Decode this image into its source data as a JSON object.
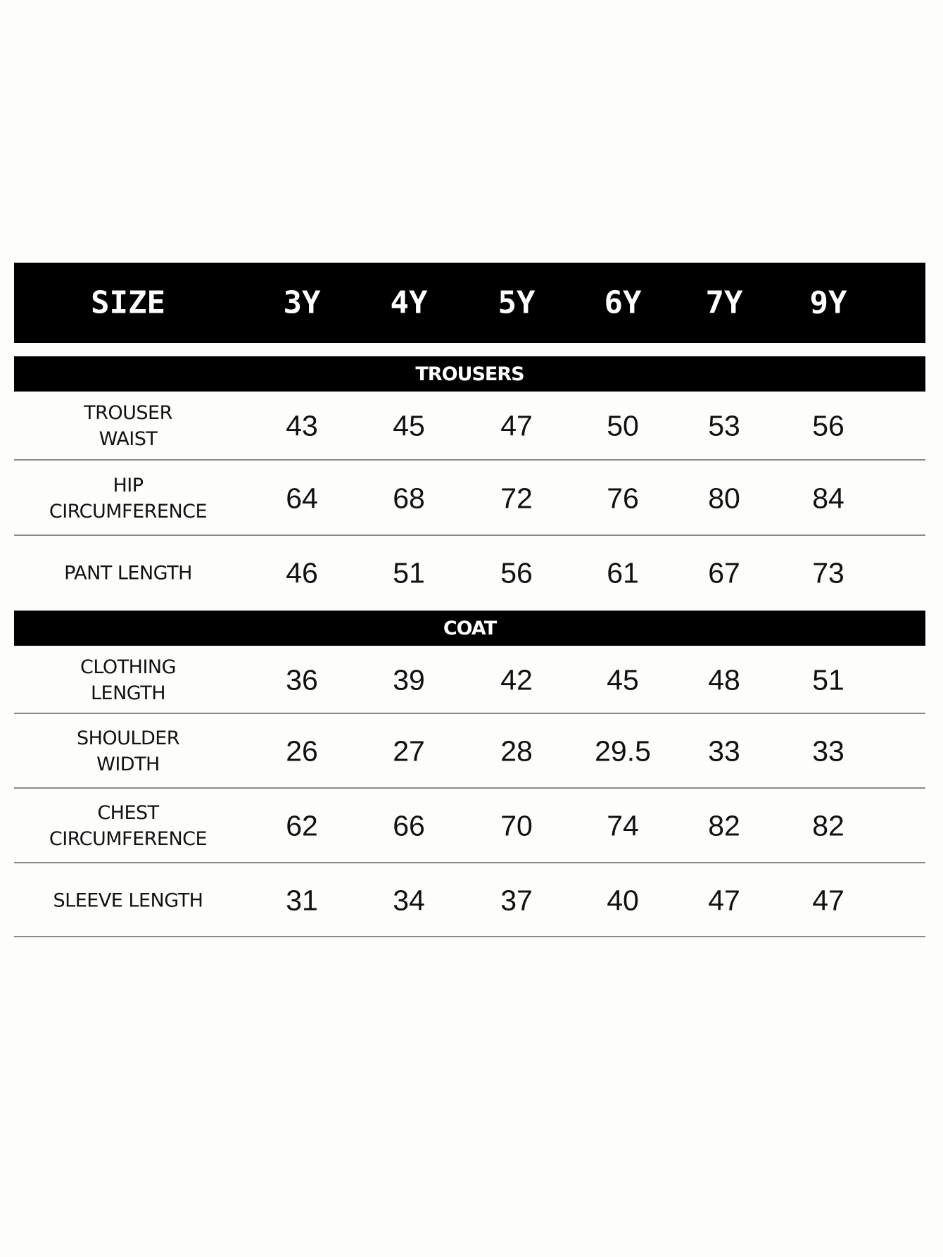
{
  "header": {
    "label": "SIZE",
    "sizes": [
      "3Y",
      "4Y",
      "5Y",
      "6Y",
      "7Y",
      "9Y"
    ]
  },
  "sections": [
    {
      "title": "TROUSERS",
      "rows": [
        {
          "label": [
            "TROUSER",
            "WAIST"
          ],
          "values": [
            "43",
            "45",
            "47",
            "50",
            "53",
            "56"
          ]
        },
        {
          "label": [
            "HIP",
            "CIRCUMFERENCE"
          ],
          "values": [
            "64",
            "68",
            "72",
            "76",
            "80",
            "84"
          ]
        },
        {
          "label": [
            "PANT LENGTH"
          ],
          "values": [
            "46",
            "51",
            "56",
            "61",
            "67",
            "73"
          ]
        }
      ]
    },
    {
      "title": "COAT",
      "rows": [
        {
          "label": [
            "CLOTHING",
            "LENGTH"
          ],
          "values": [
            "36",
            "39",
            "42",
            "45",
            "48",
            "51"
          ]
        },
        {
          "label": [
            "SHOULDER",
            "WIDTH"
          ],
          "values": [
            "26",
            "27",
            "28",
            "29.5",
            "33",
            "33"
          ]
        },
        {
          "label": [
            "CHEST",
            "CIRCUMFERENCE"
          ],
          "values": [
            "62",
            "66",
            "70",
            "74",
            "82",
            "82"
          ]
        },
        {
          "label": [
            "SLEEVE LENGTH"
          ],
          "values": [
            "31",
            "34",
            "37",
            "40",
            "47",
            "47"
          ]
        }
      ]
    }
  ]
}
